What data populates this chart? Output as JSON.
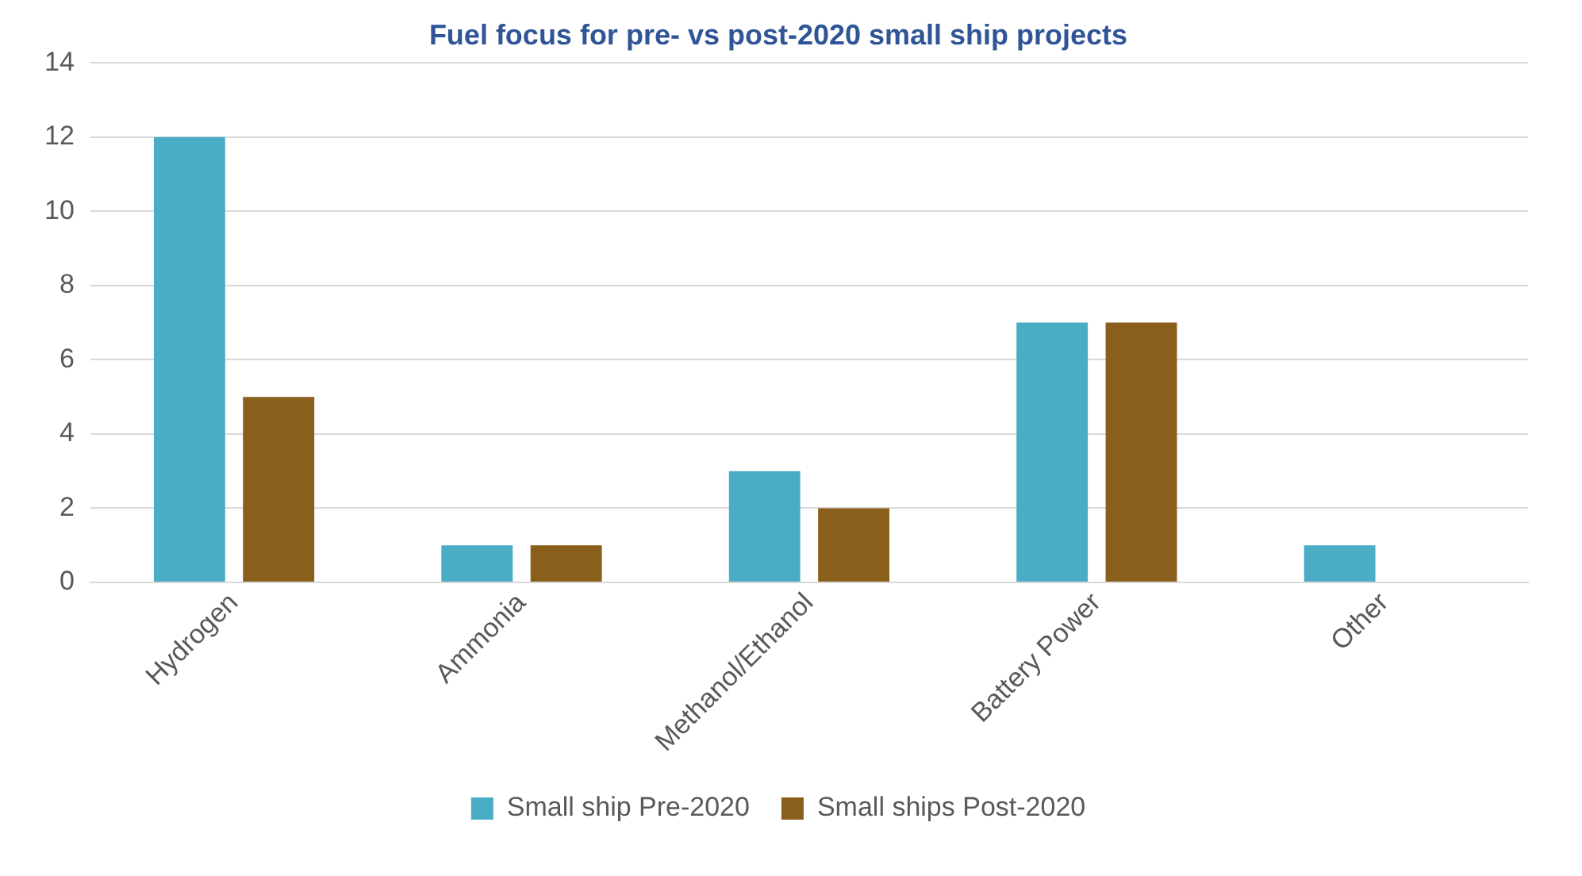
{
  "chart_data": {
    "type": "bar",
    "title": "Fuel focus for pre- vs post-2020 small ship projects",
    "categories": [
      "Hydrogen",
      "Ammonia",
      "Methanol/Ethanol",
      "Battery Power",
      "Other"
    ],
    "series": [
      {
        "name": "Small ship Pre-2020",
        "color": "#4bacc6",
        "values": [
          12,
          1,
          3,
          7,
          1
        ]
      },
      {
        "name": "Small ships Post-2020",
        "color": "#8a5f1c",
        "values": [
          5,
          1,
          2,
          7,
          0
        ]
      }
    ],
    "ylim": [
      0,
      14
    ],
    "yticks": [
      0,
      2,
      4,
      6,
      8,
      10,
      12,
      14
    ],
    "grid": "y",
    "legend": "bottom"
  }
}
